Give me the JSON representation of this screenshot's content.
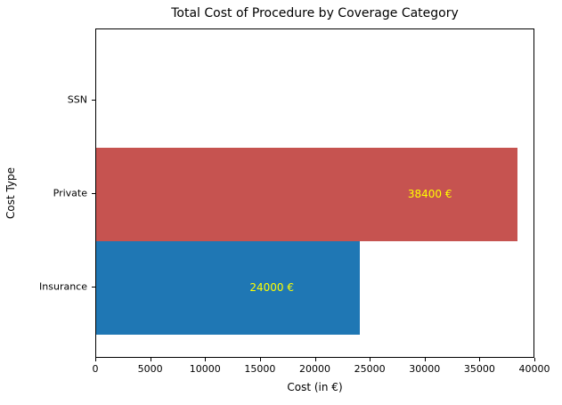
{
  "chart_data": {
    "type": "bar",
    "orientation": "horizontal",
    "title": "Total Cost of Procedure by Coverage Category",
    "xlabel": "Cost (in €)",
    "ylabel": "Cost Type",
    "categories": [
      "SSN",
      "Private",
      "Insurance"
    ],
    "values": [
      0,
      38400,
      24000
    ],
    "bar_colors": [
      null,
      "#c65350",
      "#1f77b4"
    ],
    "bar_labels": [
      "",
      "38400 €",
      "24000 €"
    ],
    "bar_label_color": "#ffff00",
    "xlim": [
      0,
      40000
    ],
    "xticks": [
      0,
      5000,
      10000,
      15000,
      20000,
      25000,
      30000,
      35000,
      40000
    ],
    "grid": false,
    "legend": false,
    "background_color": "#ffffff",
    "spine_color": "#000000"
  }
}
